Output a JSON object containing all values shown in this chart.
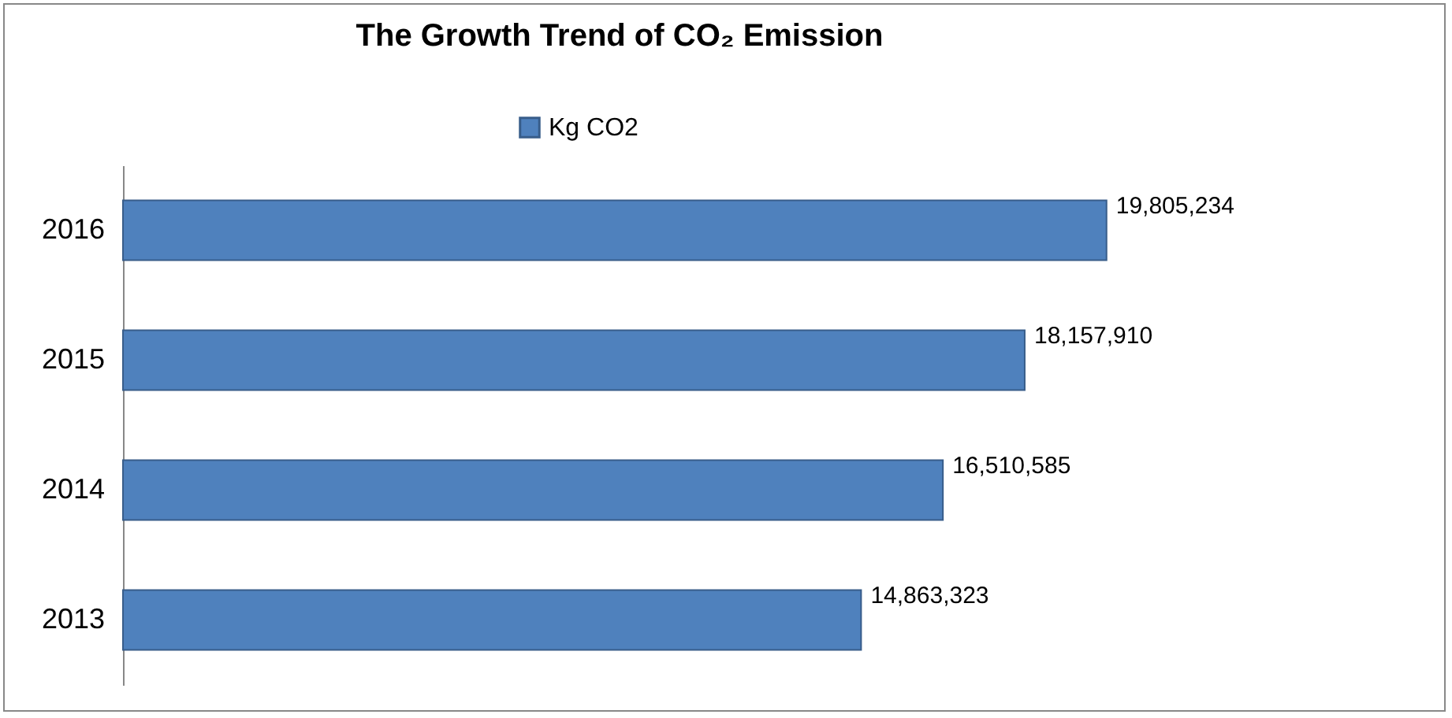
{
  "chart_data": {
    "type": "bar",
    "orientation": "horizontal",
    "title": "The Growth Trend of CO₂ Emission",
    "categories": [
      "2016",
      "2015",
      "2014",
      "2013"
    ],
    "series": [
      {
        "name": "Kg CO2",
        "color": "#4f81bd",
        "values": [
          19805234,
          18157910,
          16510585,
          14863323
        ],
        "value_labels": [
          "19,805,234",
          "18,157,910",
          "16,510,585",
          "14,863,323"
        ]
      }
    ],
    "legend": "top"
  }
}
